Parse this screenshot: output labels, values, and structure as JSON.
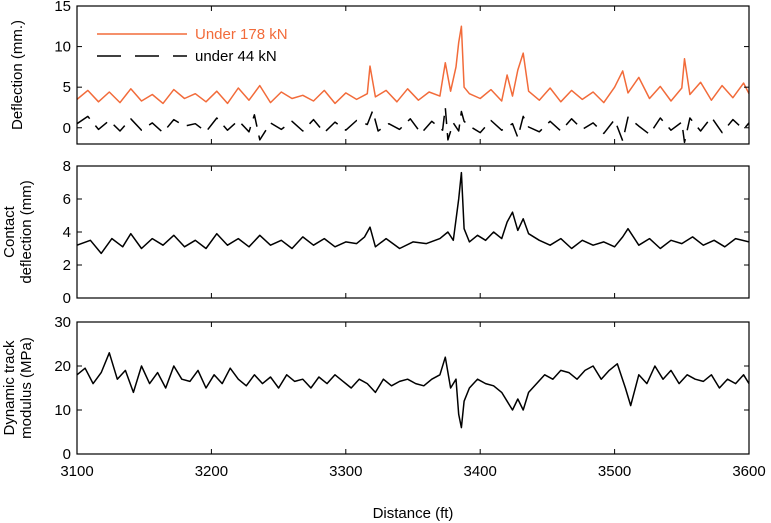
{
  "chart_data": [
    {
      "type": "line",
      "ylabel": "Deflection (mm.)",
      "ylim": [
        -2,
        15
      ],
      "yticks": [
        0,
        5,
        10,
        15
      ],
      "xlim": [
        3100,
        3600
      ],
      "legend_position": "top-left",
      "series": [
        {
          "name": "Under 178 kN",
          "color": "#f26b3a",
          "dash": "solid",
          "x": [
            3100,
            3108,
            3116,
            3124,
            3132,
            3140,
            3148,
            3156,
            3164,
            3172,
            3180,
            3188,
            3196,
            3204,
            3212,
            3220,
            3228,
            3236,
            3244,
            3252,
            3260,
            3268,
            3276,
            3284,
            3292,
            3300,
            3308,
            3316,
            3318,
            3322,
            3330,
            3338,
            3346,
            3354,
            3362,
            3370,
            3374,
            3378,
            3382,
            3384,
            3386,
            3388,
            3392,
            3400,
            3408,
            3416,
            3420,
            3424,
            3428,
            3432,
            3436,
            3444,
            3452,
            3460,
            3468,
            3476,
            3484,
            3492,
            3500,
            3506,
            3510,
            3518,
            3526,
            3534,
            3542,
            3550,
            3552,
            3556,
            3564,
            3572,
            3580,
            3588,
            3596,
            3600
          ],
          "y": [
            3.5,
            4.6,
            3.2,
            4.4,
            3.1,
            4.8,
            3.3,
            4.1,
            3.0,
            4.7,
            3.6,
            4.2,
            3.2,
            4.5,
            3.0,
            4.9,
            3.4,
            5.2,
            3.1,
            4.4,
            3.6,
            4.0,
            3.3,
            4.6,
            3.0,
            4.3,
            3.5,
            4.2,
            7.6,
            3.8,
            4.6,
            3.2,
            4.8,
            3.4,
            4.4,
            3.9,
            8.0,
            4.5,
            7.5,
            10.5,
            12.5,
            5.0,
            4.2,
            3.6,
            4.7,
            3.3,
            6.5,
            3.9,
            7.1,
            9.2,
            4.5,
            3.4,
            4.9,
            3.2,
            4.6,
            3.5,
            4.4,
            3.1,
            5.0,
            7.0,
            4.3,
            6.2,
            3.6,
            5.1,
            3.3,
            4.9,
            8.5,
            4.1,
            5.6,
            3.4,
            5.2,
            3.7,
            5.5,
            4.2
          ]
        },
        {
          "name": "under 44 kN",
          "color": "#000000",
          "dash": "long-dash",
          "x": [
            3100,
            3108,
            3116,
            3124,
            3132,
            3140,
            3148,
            3156,
            3164,
            3172,
            3180,
            3188,
            3196,
            3204,
            3212,
            3220,
            3228,
            3232,
            3236,
            3244,
            3252,
            3260,
            3268,
            3276,
            3284,
            3292,
            3300,
            3308,
            3316,
            3320,
            3324,
            3332,
            3340,
            3348,
            3356,
            3364,
            3372,
            3374,
            3376,
            3380,
            3384,
            3386,
            3388,
            3392,
            3400,
            3408,
            3416,
            3424,
            3428,
            3432,
            3436,
            3444,
            3452,
            3460,
            3468,
            3476,
            3484,
            3492,
            3500,
            3506,
            3510,
            3518,
            3526,
            3534,
            3542,
            3550,
            3552,
            3556,
            3564,
            3572,
            3580,
            3588,
            3596,
            3600
          ],
          "y": [
            0.5,
            1.4,
            -0.2,
            0.9,
            -0.4,
            1.1,
            -0.3,
            0.6,
            -0.6,
            1.0,
            0.2,
            0.5,
            -0.5,
            1.2,
            -0.3,
            0.9,
            -0.5,
            1.6,
            -1.5,
            0.6,
            -0.2,
            0.8,
            -0.4,
            1.0,
            -0.6,
            0.7,
            -0.3,
            0.9,
            0.4,
            2.1,
            -0.4,
            0.5,
            -0.2,
            1.1,
            -0.7,
            0.8,
            -0.3,
            2.5,
            -1.5,
            0.6,
            -0.4,
            2.0,
            0.8,
            0.2,
            -0.6,
            0.9,
            -0.3,
            0.5,
            -1.2,
            1.4,
            0.1,
            -0.5,
            0.8,
            -0.4,
            1.1,
            -0.2,
            0.6,
            -0.7,
            1.0,
            -1.6,
            1.3,
            0.2,
            -0.8,
            1.2,
            -0.3,
            0.7,
            -1.8,
            1.2,
            -0.4,
            1.3,
            -0.6,
            1.0,
            -0.2,
            0.6
          ]
        }
      ]
    },
    {
      "type": "line",
      "ylabel": "Contact deflection (mm)",
      "ylim": [
        0,
        8
      ],
      "yticks": [
        0,
        2,
        4,
        6,
        8
      ],
      "xlim": [
        3100,
        3600
      ],
      "series": [
        {
          "color": "#000000",
          "dash": "solid",
          "x": [
            3100,
            3110,
            3118,
            3126,
            3134,
            3140,
            3148,
            3156,
            3164,
            3172,
            3180,
            3188,
            3196,
            3204,
            3212,
            3220,
            3228,
            3236,
            3244,
            3252,
            3260,
            3268,
            3276,
            3284,
            3292,
            3300,
            3308,
            3314,
            3318,
            3322,
            3330,
            3340,
            3350,
            3360,
            3370,
            3376,
            3380,
            3384,
            3386,
            3388,
            3392,
            3398,
            3404,
            3410,
            3416,
            3420,
            3424,
            3428,
            3432,
            3436,
            3444,
            3452,
            3460,
            3468,
            3476,
            3484,
            3492,
            3500,
            3506,
            3510,
            3518,
            3526,
            3534,
            3542,
            3550,
            3558,
            3566,
            3574,
            3582,
            3590,
            3600
          ],
          "y": [
            3.2,
            3.5,
            2.7,
            3.6,
            3.1,
            3.9,
            3.0,
            3.6,
            3.2,
            3.8,
            3.1,
            3.5,
            3.0,
            3.9,
            3.2,
            3.6,
            3.1,
            3.8,
            3.2,
            3.5,
            3.0,
            3.7,
            3.2,
            3.6,
            3.1,
            3.4,
            3.3,
            3.7,
            4.3,
            3.1,
            3.6,
            3.0,
            3.4,
            3.3,
            3.6,
            4.0,
            3.5,
            6.0,
            7.6,
            4.2,
            3.4,
            3.8,
            3.5,
            4.0,
            3.6,
            4.6,
            5.2,
            4.1,
            4.8,
            3.9,
            3.5,
            3.2,
            3.6,
            3.0,
            3.5,
            3.2,
            3.4,
            3.1,
            3.7,
            4.2,
            3.2,
            3.6,
            3.0,
            3.5,
            3.3,
            3.7,
            3.2,
            3.5,
            3.1,
            3.6,
            3.4
          ]
        }
      ]
    },
    {
      "type": "line",
      "xlabel": "Distance (ft)",
      "ylabel": "Dynamic track modulus (MPa)",
      "ylim": [
        0,
        30
      ],
      "yticks": [
        0,
        10,
        20,
        30
      ],
      "xlim": [
        3100,
        3600
      ],
      "xticks": [
        3100,
        3200,
        3300,
        3400,
        3500,
        3600
      ],
      "series": [
        {
          "color": "#000000",
          "dash": "solid",
          "x": [
            3100,
            3106,
            3112,
            3118,
            3124,
            3130,
            3136,
            3142,
            3148,
            3154,
            3160,
            3166,
            3172,
            3178,
            3184,
            3190,
            3196,
            3202,
            3208,
            3214,
            3220,
            3226,
            3232,
            3238,
            3244,
            3250,
            3256,
            3262,
            3268,
            3274,
            3280,
            3286,
            3292,
            3298,
            3304,
            3310,
            3316,
            3322,
            3328,
            3334,
            3340,
            3346,
            3352,
            3358,
            3364,
            3370,
            3374,
            3378,
            3382,
            3384,
            3386,
            3388,
            3392,
            3398,
            3404,
            3410,
            3416,
            3420,
            3424,
            3428,
            3432,
            3436,
            3442,
            3448,
            3454,
            3460,
            3466,
            3472,
            3478,
            3484,
            3490,
            3496,
            3502,
            3508,
            3512,
            3518,
            3524,
            3530,
            3536,
            3542,
            3548,
            3554,
            3560,
            3566,
            3572,
            3578,
            3584,
            3590,
            3596,
            3600
          ],
          "y": [
            18,
            19.5,
            16,
            18.5,
            23,
            17,
            19,
            14,
            20,
            16,
            18.5,
            15,
            20,
            17,
            16.5,
            19,
            15,
            18,
            16,
            19.5,
            17,
            15.5,
            18,
            16,
            17.5,
            15,
            18,
            16.5,
            17,
            15,
            17.5,
            16,
            18,
            16.5,
            15,
            17,
            16,
            14,
            17,
            15.5,
            16.5,
            17,
            16,
            15.5,
            17,
            18,
            22,
            15,
            17,
            9,
            6,
            12,
            15,
            17,
            16,
            15.5,
            14,
            12,
            10,
            12.5,
            10,
            14,
            16,
            18,
            17,
            19,
            18.5,
            17,
            19,
            20,
            17,
            19,
            20.5,
            15,
            11,
            18,
            16,
            20,
            17,
            19,
            16,
            18,
            17,
            16.5,
            18,
            15,
            17,
            16,
            18,
            16
          ]
        }
      ]
    }
  ]
}
